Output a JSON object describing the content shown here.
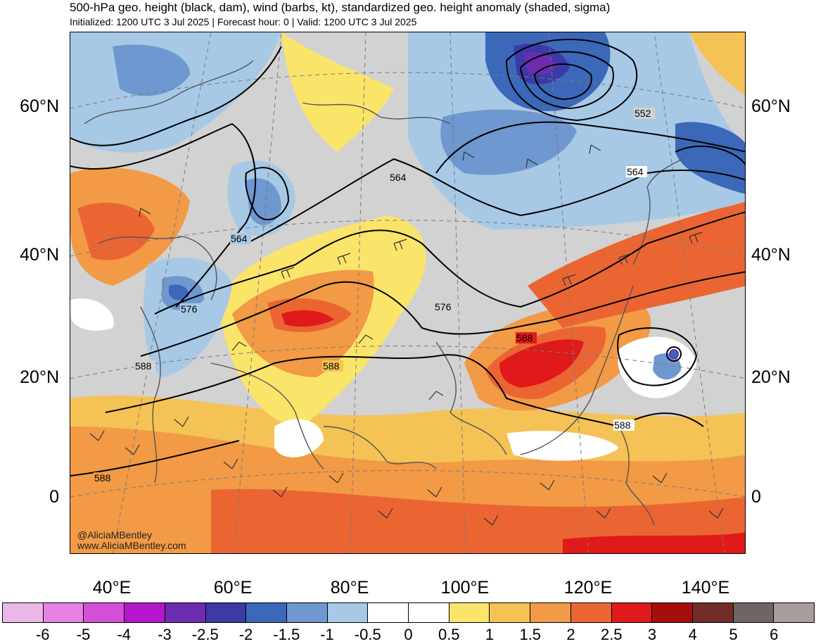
{
  "header": {
    "title": "500-hPa geo. height (black, dam), wind (barbs, kt), standardized geo. height anomaly (shaded, sigma)",
    "subtitle": "Initialized: 1200 UTC 3 Jul 2025 | Forecast hour: 0 | Valid: 1200 UTC 3 Jul 2025"
  },
  "map": {
    "lat_labels": [
      "60°N",
      "40°N",
      "20°N",
      "0"
    ],
    "lon_labels": [
      "40°E",
      "60°E",
      "80°E",
      "100°E",
      "120°E",
      "140°E"
    ],
    "contour_labels": [
      "552",
      "564",
      "564",
      "564",
      "576",
      "576",
      "588",
      "588",
      "588",
      "588",
      "588"
    ],
    "credit_handle": "@AliciaMBentley",
    "credit_site": "www.AliciaMBentley.com"
  },
  "colorbar": {
    "labels": [
      "-6",
      "-5",
      "-4",
      "-3",
      "-2.5",
      "-2",
      "-1.5",
      "-1",
      "-0.5",
      "0",
      "0.5",
      "1",
      "1.5",
      "2",
      "2.5",
      "3",
      "4",
      "5",
      "6"
    ],
    "colors": [
      "#e9b8e6",
      "#e582e3",
      "#d54fd6",
      "#b217c9",
      "#6d2cb0",
      "#3b3aa6",
      "#3c68b9",
      "#6f97d0",
      "#a7c9e6",
      "#ffffff",
      "#ffffff",
      "#fbe46a",
      "#f4c255",
      "#f29a45",
      "#eb6533",
      "#e0191a",
      "#a60d0d",
      "#732d28",
      "#6f6663",
      "#a79d9b"
    ]
  }
}
